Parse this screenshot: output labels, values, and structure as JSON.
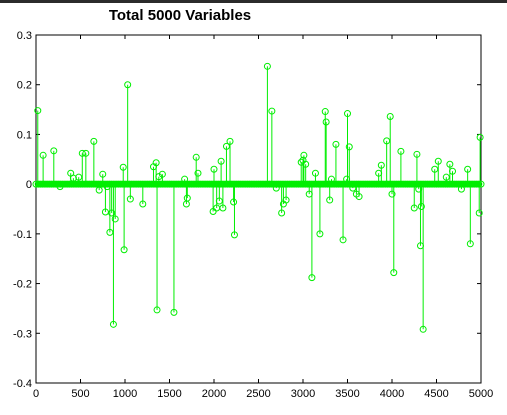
{
  "chart_data": {
    "type": "stem",
    "title": "Total 5000 Variables",
    "xlabel": "",
    "ylabel": "",
    "xlim": [
      0,
      5000
    ],
    "ylim": [
      -0.4,
      0.3
    ],
    "x_ticks": [
      0,
      500,
      1000,
      1500,
      2000,
      2500,
      3000,
      3500,
      4000,
      4500,
      5000
    ],
    "y_ticks": [
      -0.4,
      -0.3,
      -0.2,
      -0.1,
      0,
      0.1,
      0.2,
      0.3
    ],
    "x_tick_labels": [
      "0",
      "500",
      "1000",
      "1500",
      "2000",
      "2500",
      "3000",
      "3500",
      "4000",
      "4500",
      "5000"
    ],
    "y_tick_labels": [
      "-0.4",
      "-0.3",
      "-0.2",
      "-0.1",
      "0",
      "0.1",
      "0.2",
      "0.3"
    ],
    "grid": false,
    "series_color": "#00ee00",
    "marker": "circle",
    "baseline_value": 0,
    "points": [
      [
        20,
        0.148
      ],
      [
        80,
        0.058
      ],
      [
        200,
        0.067
      ],
      [
        270,
        -0.005
      ],
      [
        390,
        0.022
      ],
      [
        420,
        0.012
      ],
      [
        480,
        0.014
      ],
      [
        520,
        0.062
      ],
      [
        560,
        0.062
      ],
      [
        650,
        0.086
      ],
      [
        710,
        -0.012
      ],
      [
        750,
        0.02
      ],
      [
        780,
        -0.056
      ],
      [
        800,
        -0.005
      ],
      [
        830,
        -0.097
      ],
      [
        850,
        -0.058
      ],
      [
        870,
        -0.282
      ],
      [
        890,
        -0.07
      ],
      [
        980,
        0.034
      ],
      [
        990,
        -0.132
      ],
      [
        1030,
        0.2
      ],
      [
        1060,
        -0.03
      ],
      [
        1200,
        -0.04
      ],
      [
        1320,
        0.035
      ],
      [
        1350,
        0.043
      ],
      [
        1360,
        -0.253
      ],
      [
        1380,
        0.015
      ],
      [
        1420,
        0.02
      ],
      [
        1550,
        -0.258
      ],
      [
        1670,
        0.01
      ],
      [
        1690,
        -0.04
      ],
      [
        1700,
        -0.028
      ],
      [
        1800,
        0.054
      ],
      [
        1820,
        0.022
      ],
      [
        1990,
        -0.055
      ],
      [
        2000,
        0.03
      ],
      [
        2030,
        -0.048
      ],
      [
        2060,
        -0.034
      ],
      [
        2080,
        0.046
      ],
      [
        2100,
        -0.048
      ],
      [
        2140,
        0.076
      ],
      [
        2180,
        0.086
      ],
      [
        2220,
        -0.036
      ],
      [
        2230,
        -0.102
      ],
      [
        2600,
        0.237
      ],
      [
        2650,
        0.147
      ],
      [
        2700,
        -0.008
      ],
      [
        2760,
        -0.058
      ],
      [
        2780,
        -0.04
      ],
      [
        2810,
        -0.032
      ],
      [
        2980,
        0.044
      ],
      [
        3000,
        0.048
      ],
      [
        3010,
        0.058
      ],
      [
        3030,
        0.04
      ],
      [
        3070,
        -0.02
      ],
      [
        3100,
        -0.188
      ],
      [
        3140,
        0.022
      ],
      [
        3190,
        -0.1
      ],
      [
        3250,
        0.146
      ],
      [
        3260,
        0.125
      ],
      [
        3300,
        -0.032
      ],
      [
        3320,
        0.01
      ],
      [
        3370,
        0.08
      ],
      [
        3450,
        -0.112
      ],
      [
        3490,
        0.01
      ],
      [
        3500,
        0.142
      ],
      [
        3520,
        0.075
      ],
      [
        3560,
        -0.008
      ],
      [
        3600,
        -0.02
      ],
      [
        3630,
        -0.025
      ],
      [
        3850,
        0.022
      ],
      [
        3880,
        0.038
      ],
      [
        3940,
        0.087
      ],
      [
        3980,
        0.136
      ],
      [
        4000,
        -0.02
      ],
      [
        4020,
        -0.178
      ],
      [
        4100,
        0.066
      ],
      [
        4250,
        -0.048
      ],
      [
        4280,
        0.06
      ],
      [
        4300,
        -0.01
      ],
      [
        4320,
        -0.124
      ],
      [
        4330,
        -0.045
      ],
      [
        4350,
        -0.292
      ],
      [
        4480,
        0.03
      ],
      [
        4520,
        0.046
      ],
      [
        4610,
        0.014
      ],
      [
        4650,
        0.04
      ],
      [
        4680,
        0.026
      ],
      [
        4780,
        -0.01
      ],
      [
        4850,
        0.03
      ],
      [
        4880,
        -0.12
      ],
      [
        4980,
        -0.058
      ],
      [
        4990,
        0.094
      ]
    ]
  }
}
